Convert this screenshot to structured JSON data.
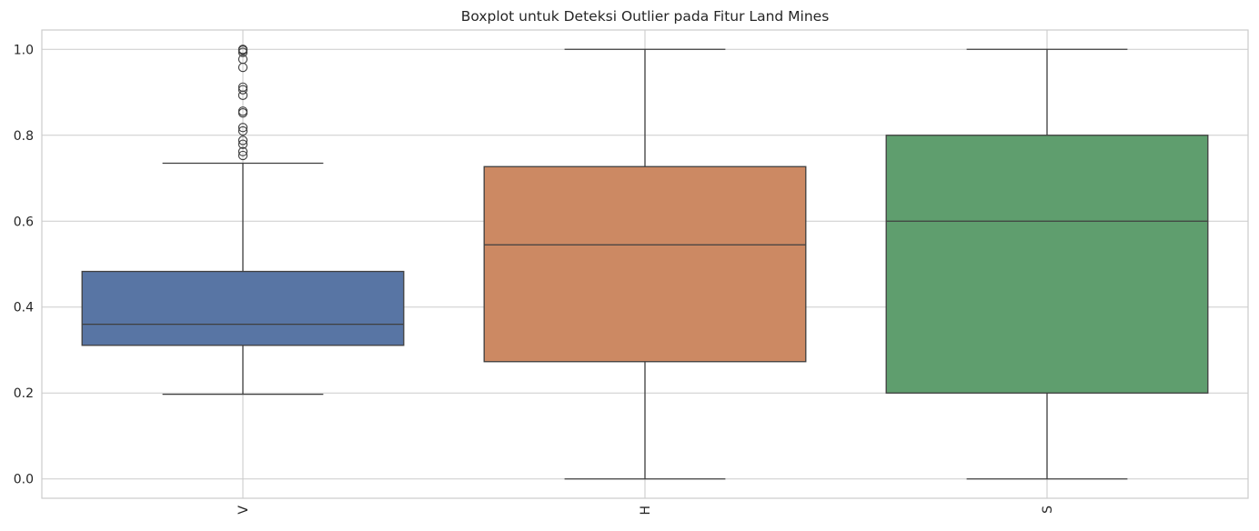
{
  "chart_data": {
    "type": "boxplot",
    "title": "Boxplot untuk Deteksi Outlier pada Fitur Land Mines",
    "xlabel": "",
    "ylabel": "",
    "ylim": [
      -0.045,
      1.045
    ],
    "yticks": [
      "0.0",
      "0.2",
      "0.4",
      "0.6",
      "0.8",
      "1.0"
    ],
    "grid": true,
    "categories": [
      "V",
      "H",
      "S"
    ],
    "boxes": [
      {
        "name": "V",
        "color": "#5875a4",
        "whisker_low": 0.197,
        "q1": 0.311,
        "median": 0.36,
        "q3": 0.483,
        "whisker_high": 0.735,
        "outliers": [
          0.753,
          0.762,
          0.779,
          0.788,
          0.81,
          0.818,
          0.852,
          0.856,
          0.893,
          0.906,
          0.912,
          0.958,
          0.977,
          0.993,
          0.998,
          1.0
        ]
      },
      {
        "name": "H",
        "color": "#cc8963",
        "whisker_low": 0.0,
        "q1": 0.273,
        "median": 0.545,
        "q3": 0.727,
        "whisker_high": 1.0,
        "outliers": []
      },
      {
        "name": "S",
        "color": "#5f9e6e",
        "whisker_low": 0.0,
        "q1": 0.2,
        "median": 0.6,
        "q3": 0.8,
        "whisker_high": 1.0,
        "outliers": []
      }
    ]
  }
}
